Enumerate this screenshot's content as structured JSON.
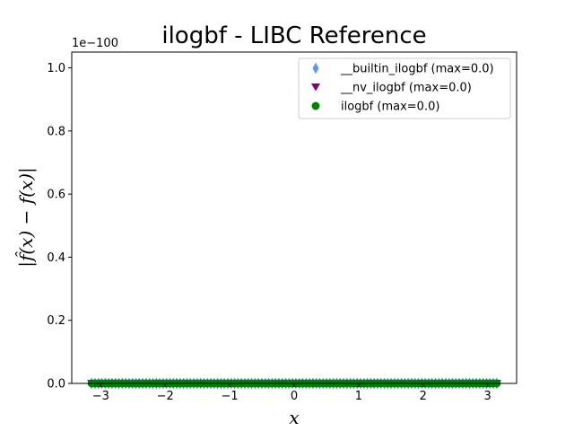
{
  "chart_data": {
    "type": "scatter",
    "title": "ilogbf - LIBC Reference",
    "xlabel": "x",
    "ylabel": "|f̂(x) − f(x)|",
    "y_offset_label": "1e−100",
    "xlim": [
      -3.45,
      3.45
    ],
    "ylim": [
      0,
      1.05
    ],
    "x_ticks": [
      -3,
      -2,
      -1,
      0,
      1,
      2,
      3
    ],
    "x_tick_labels": [
      "−3",
      "−2",
      "−1",
      "0",
      "1",
      "2",
      "3"
    ],
    "y_ticks": [
      0.0,
      0.2,
      0.4,
      0.6,
      0.8,
      1.0
    ],
    "y_tick_labels": [
      "0.0",
      "0.2",
      "0.4",
      "0.6",
      "0.8",
      "1.0"
    ],
    "x_range": [
      -3.14159,
      3.14159
    ],
    "grid": false,
    "legend_position": "top-right",
    "series": [
      {
        "name": "__builtin_ilogbf (max=0.0)",
        "marker": "diamond",
        "color": "#6495ed",
        "y": 0.0
      },
      {
        "name": "__nv_ilogbf (max=0.0)",
        "marker": "triangle-down",
        "color": "#800080",
        "y": 0.0
      },
      {
        "name": "ilogbf (max=0.0)",
        "marker": "circle",
        "color": "#008000",
        "y": 0.0
      }
    ]
  }
}
